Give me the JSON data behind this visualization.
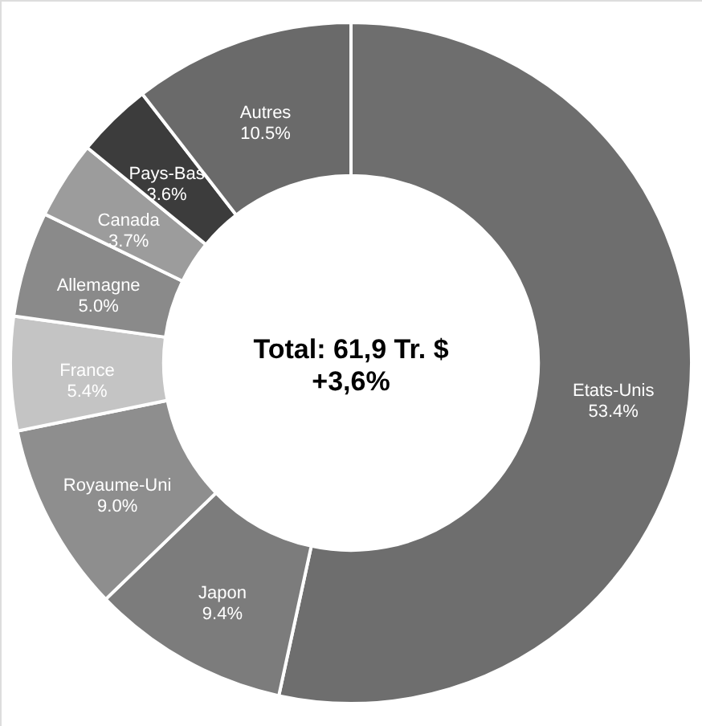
{
  "chart_data": {
    "type": "donut",
    "categories": [
      "Etats-Unis",
      "Japon",
      "Royaume-Uni",
      "France",
      "Allemagne",
      "Canada",
      "Pays-Bas",
      "Autres"
    ],
    "values": [
      53.4,
      9.4,
      9.0,
      5.4,
      5.0,
      3.7,
      3.6,
      10.5
    ],
    "value_labels": [
      "53.4%",
      "9.4%",
      "9.0%",
      "5.4%",
      "5.0%",
      "3.7%",
      "3.6%",
      "10.5%"
    ],
    "colors": [
      "#6e6e6e",
      "#7c7c7c",
      "#8e8e8e",
      "#c4c4c4",
      "#8a8a8a",
      "#9c9c9c",
      "#3c3c3c",
      "#6a6a6a"
    ],
    "annotations": [
      "Total: 61,9 Tr. $",
      "+3,6%"
    ]
  }
}
